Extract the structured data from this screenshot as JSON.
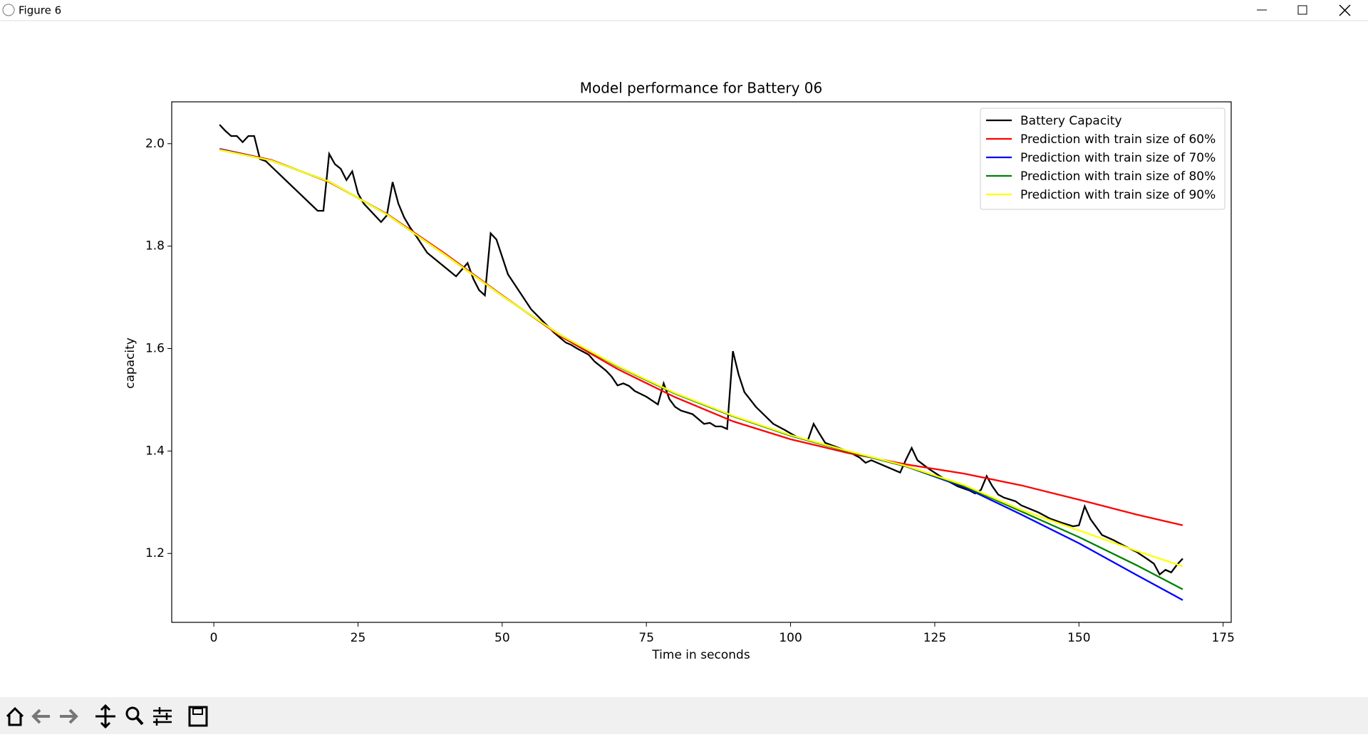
{
  "window": {
    "title": "Figure 6"
  },
  "chart_data": {
    "type": "line",
    "title": "Model performance for Battery 06",
    "x_label": "Time in seconds",
    "y_label": "capacity",
    "xlim": [
      -7.3,
      176.4
    ],
    "ylim": [
      1.0655,
      2.0817
    ],
    "xticks": [
      0,
      25,
      50,
      75,
      100,
      125,
      150,
      175
    ],
    "yticks": [
      1.2,
      1.4,
      1.6,
      1.8,
      {
        "value": 2,
        "label": "2.0"
      }
    ],
    "grid": false,
    "legend": "upper right",
    "series": [
      {
        "name": "Battery Capacity",
        "color": "#000000",
        "x": [
          1,
          2,
          3,
          4,
          5,
          6,
          7,
          8,
          9,
          18,
          19,
          20,
          21,
          22,
          23,
          24,
          25,
          26,
          29,
          30,
          31,
          32,
          33,
          34,
          35,
          37,
          42,
          44,
          45,
          46,
          47,
          48,
          49,
          50,
          51,
          53,
          55,
          59,
          61,
          62,
          63,
          65,
          66,
          68,
          69,
          70,
          71,
          72,
          73,
          75,
          77,
          78,
          79,
          80,
          81,
          83,
          85,
          86,
          87,
          88,
          89,
          90,
          91,
          92,
          94,
          97,
          99,
          101,
          103,
          104,
          105,
          106,
          110,
          112,
          113,
          114,
          119,
          120,
          121,
          122,
          124,
          127,
          129,
          131,
          132,
          133,
          134,
          135,
          136,
          137,
          139,
          140,
          143,
          145,
          147,
          149,
          150,
          151,
          152,
          154,
          156,
          158,
          160,
          162,
          163,
          164,
          165,
          166,
          167,
          168
        ],
        "values": [
          2.037,
          2.025,
          2.015,
          2.015,
          2.003,
          2.015,
          2.015,
          1.97,
          1.966,
          1.869,
          1.869,
          1.98,
          1.96,
          1.951,
          1.929,
          1.946,
          1.903,
          1.883,
          1.847,
          1.86,
          1.925,
          1.883,
          1.856,
          1.837,
          1.821,
          1.787,
          1.741,
          1.767,
          1.736,
          1.714,
          1.704,
          1.825,
          1.813,
          1.779,
          1.745,
          1.711,
          1.677,
          1.631,
          1.612,
          1.607,
          1.6,
          1.588,
          1.575,
          1.557,
          1.545,
          1.528,
          1.532,
          1.527,
          1.517,
          1.506,
          1.491,
          1.532,
          1.501,
          1.486,
          1.479,
          1.472,
          1.453,
          1.455,
          1.448,
          1.448,
          1.443,
          1.595,
          1.549,
          1.515,
          1.486,
          1.453,
          1.441,
          1.428,
          1.421,
          1.453,
          1.434,
          1.416,
          1.399,
          1.387,
          1.377,
          1.382,
          1.358,
          1.383,
          1.406,
          1.382,
          1.365,
          1.343,
          1.331,
          1.323,
          1.317,
          1.324,
          1.351,
          1.331,
          1.315,
          1.309,
          1.302,
          1.294,
          1.28,
          1.268,
          1.26,
          1.253,
          1.255,
          1.292,
          1.267,
          1.236,
          1.226,
          1.214,
          1.203,
          1.188,
          1.18,
          1.159,
          1.168,
          1.163,
          1.178,
          1.19
        ]
      },
      {
        "name": "Prediction with train size of 60%",
        "color": "#ff0000",
        "x": [
          1,
          10,
          20,
          30,
          40,
          50,
          60,
          70,
          80,
          90,
          100,
          110,
          120,
          130,
          140,
          150,
          160,
          168
        ],
        "values": [
          1.99,
          1.968,
          1.925,
          1.863,
          1.786,
          1.704,
          1.625,
          1.56,
          1.505,
          1.458,
          1.423,
          1.396,
          1.374,
          1.356,
          1.333,
          1.305,
          1.276,
          1.255
        ]
      },
      {
        "name": "Prediction with train size of 70%",
        "color": "#0000ff",
        "x": [
          1,
          10,
          20,
          30,
          40,
          50,
          60,
          70,
          80,
          90,
          100,
          110,
          120,
          130,
          140,
          150,
          160,
          168
        ],
        "values": [
          1.989,
          1.967,
          1.926,
          1.862,
          1.784,
          1.703,
          1.627,
          1.565,
          1.512,
          1.468,
          1.43,
          1.399,
          1.37,
          1.33,
          1.276,
          1.22,
          1.158,
          1.109
        ]
      },
      {
        "name": "Prediction with train size of 80%",
        "color": "#008000",
        "x": [
          1,
          10,
          20,
          30,
          40,
          50,
          60,
          70,
          80,
          90,
          100,
          110,
          120,
          130,
          140,
          150,
          160,
          168
        ],
        "values": [
          1.988,
          1.967,
          1.926,
          1.862,
          1.784,
          1.703,
          1.627,
          1.565,
          1.512,
          1.468,
          1.43,
          1.399,
          1.37,
          1.332,
          1.282,
          1.232,
          1.177,
          1.13
        ]
      },
      {
        "name": "Prediction with train size of 90%",
        "color": "#ffff00",
        "x": [
          1,
          10,
          20,
          30,
          40,
          50,
          60,
          70,
          80,
          90,
          100,
          110,
          120,
          130,
          140,
          150,
          160,
          168
        ],
        "values": [
          1.988,
          1.967,
          1.926,
          1.862,
          1.784,
          1.703,
          1.627,
          1.566,
          1.513,
          1.469,
          1.431,
          1.4,
          1.371,
          1.334,
          1.285,
          1.245,
          1.205,
          1.175
        ]
      }
    ]
  }
}
